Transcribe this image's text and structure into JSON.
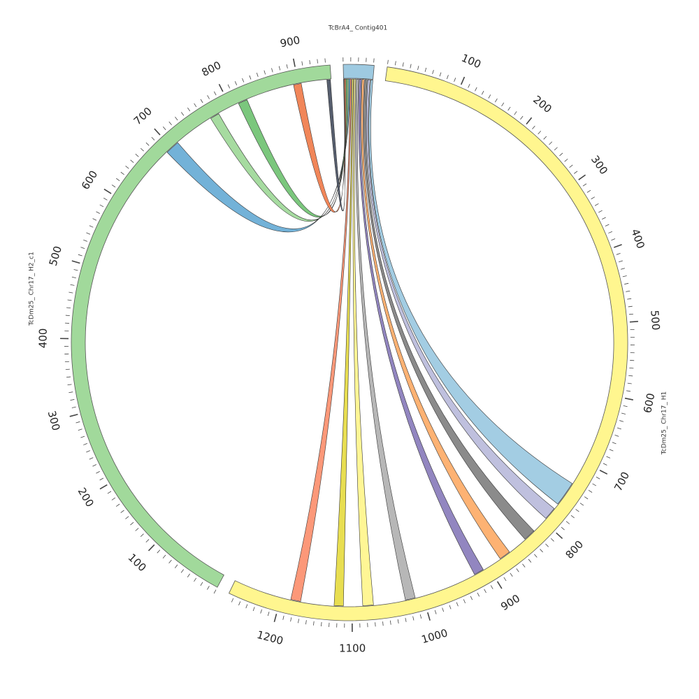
{
  "chart_data": {
    "type": "chord",
    "segments": [
      {
        "name": "TcBrA4_ Contig401",
        "length": 41,
        "color": "#9ecae1"
      },
      {
        "name": "TcDm25_ Chr17_ H1",
        "length": 1268,
        "color": "#fff68f"
      },
      {
        "name": "TcDm25_ Chr17_ H2_c1",
        "length": 946,
        "color": "#a1d99b"
      }
    ],
    "ticks": {
      "TcDm25_ Chr17_ H1": [
        "100",
        "200",
        "300",
        "400",
        "500",
        "600",
        "700",
        "800",
        "900",
        "1000",
        "1100",
        "1200"
      ],
      "TcDm25_ Chr17_ H2_c1": [
        "100",
        "200",
        "300",
        "400",
        "500",
        "600",
        "700",
        "800",
        "900"
      ]
    },
    "links": [
      {
        "target": "TcDm25_ Chr17_ H1",
        "src_range": [
          38,
          41
        ],
        "tgt_range": [
          734,
          769
        ],
        "color": "#9ecae1"
      },
      {
        "target": "TcDm25_ Chr17_ H1",
        "src_range": [
          34,
          37
        ],
        "tgt_range": [
          777,
          795
        ],
        "color": "#bcbddc"
      },
      {
        "target": "TcDm25_ Chr17_ H1",
        "src_range": [
          30,
          33
        ],
        "tgt_range": [
          819,
          836
        ],
        "color": "#858585"
      },
      {
        "target": "TcDm25_ Chr17_ H1",
        "src_range": [
          26,
          29
        ],
        "tgt_range": [
          864,
          880
        ],
        "color": "#fdae6b"
      },
      {
        "target": "TcDm25_ Chr17_ H1",
        "src_range": [
          22,
          25
        ],
        "tgt_range": [
          908,
          922
        ],
        "color": "#8c7fbd"
      },
      {
        "target": "TcDm25_ Chr17_ H1",
        "src_range": [
          18,
          21
        ],
        "tgt_range": [
          1011,
          1025
        ],
        "color": "#b3b3b3"
      },
      {
        "target": "TcDm25_ Chr17_ H1",
        "src_range": [
          15,
          17
        ],
        "tgt_range": [
          1070,
          1085
        ],
        "color": "#fff68f"
      },
      {
        "target": "TcDm25_ Chr17_ H1",
        "src_range": [
          12,
          14
        ],
        "tgt_range": [
          1112,
          1125
        ],
        "color": "#e7dc48"
      },
      {
        "target": "TcDm25_ Chr17_ H1",
        "src_range": [
          9,
          11
        ],
        "tgt_range": [
          1172,
          1186
        ],
        "color": "#fc9272"
      },
      {
        "target": "TcDm25_ Chr17_ H2_c1",
        "src_range": [
          7,
          9
        ],
        "tgt_range": [
          691,
          711
        ],
        "color": "#6baed6"
      },
      {
        "target": "TcDm25_ Chr17_ H2_c1",
        "src_range": [
          5,
          7
        ],
        "tgt_range": [
          768,
          781
        ],
        "color": "#a1d99b"
      },
      {
        "target": "TcDm25_ Chr17_ H2_c1",
        "src_range": [
          3,
          5
        ],
        "tgt_range": [
          812,
          825
        ],
        "color": "#74c476"
      },
      {
        "target": "TcDm25_ Chr17_ H2_c1",
        "src_range": [
          1,
          3
        ],
        "tgt_range": [
          893,
          904
        ],
        "color": "#f08050"
      },
      {
        "target": "TcDm25_ Chr17_ H2_c1",
        "src_range": [
          0,
          1
        ],
        "tgt_range": [
          940,
          945
        ],
        "color": "#4d5566"
      }
    ]
  }
}
